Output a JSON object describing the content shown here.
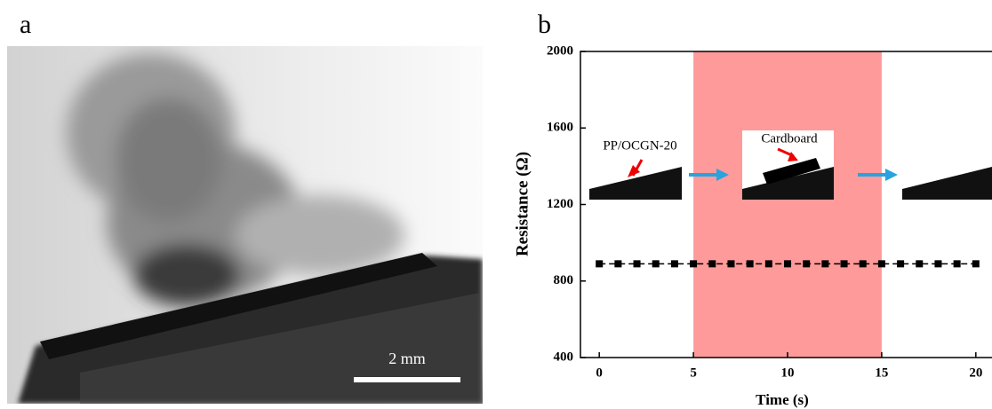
{
  "panel_labels": [
    "a",
    "b"
  ],
  "scale_bar": "2 mm",
  "chart_data": {
    "type": "line",
    "x_label": "Time (s)",
    "y_label": "Resistance (Ω)",
    "x": [
      0,
      1,
      2,
      3,
      4,
      5,
      6,
      7,
      8,
      9,
      10,
      11,
      12,
      13,
      14,
      15,
      16,
      17,
      18,
      19,
      20
    ],
    "values": [
      890,
      890,
      890,
      890,
      890,
      890,
      890,
      890,
      890,
      890,
      890,
      890,
      890,
      890,
      890,
      890,
      890,
      890,
      890,
      890,
      890
    ],
    "color": "#000000",
    "highlight": {
      "xrange": [
        5,
        15
      ],
      "color": "#ff9a9a"
    },
    "annotations": [
      "PP/OCGN-20",
      "Cardboard"
    ],
    "xlim": [
      -1,
      21
    ],
    "xticks": [
      0,
      5,
      10,
      15,
      20
    ],
    "ylim": [
      400,
      2000
    ],
    "yticks": [
      400,
      800,
      1200,
      1600,
      2000
    ]
  }
}
